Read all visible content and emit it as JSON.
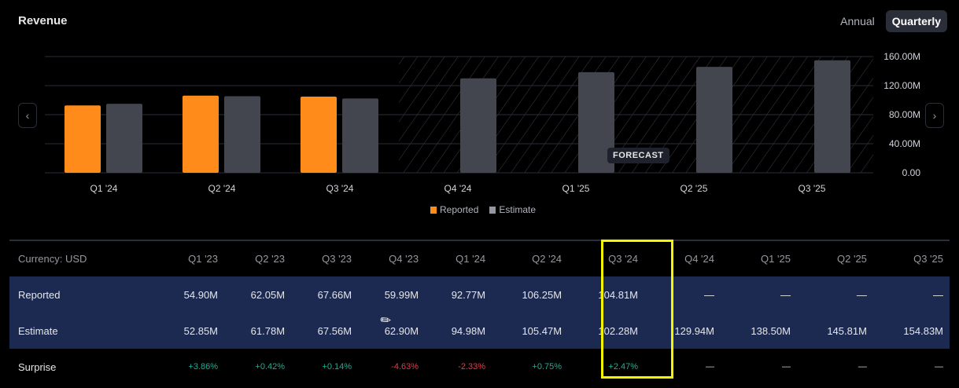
{
  "header": {
    "title": "Revenue",
    "tabs": [
      {
        "label": "Annual",
        "active": false
      },
      {
        "label": "Quarterly",
        "active": true
      }
    ]
  },
  "nav": {
    "prev": "‹",
    "next": "›"
  },
  "forecast_label": "FORECAST",
  "chart_data": {
    "type": "bar",
    "title": "Revenue",
    "categories": [
      "Q1 '24",
      "Q2 '24",
      "Q3 '24",
      "Q4 '24",
      "Q1 '25",
      "Q2 '25",
      "Q3 '25"
    ],
    "series": [
      {
        "name": "Reported",
        "color": "#ff8c1a",
        "values": [
          92.77,
          106.25,
          104.81,
          null,
          null,
          null,
          null
        ]
      },
      {
        "name": "Estimate",
        "color": "#43464f",
        "values": [
          94.98,
          105.47,
          102.28,
          129.94,
          138.5,
          145.81,
          154.83
        ]
      }
    ],
    "yticks": [
      "0.00",
      "40.00M",
      "80.00M",
      "120.00M",
      "160.00M"
    ],
    "ylim": [
      0,
      160
    ],
    "unit": "M",
    "forecast_start": "Q4 '24",
    "legend": "bottom-center"
  },
  "table": {
    "currency": "Currency: USD",
    "columns": [
      "Q1 '23",
      "Q2 '23",
      "Q3 '23",
      "Q4 '23",
      "Q1 '24",
      "Q2 '24",
      "Q3 '24",
      "Q4 '24",
      "Q1 '25",
      "Q2 '25",
      "Q3 '25"
    ],
    "rows": [
      {
        "label": "Reported",
        "values": [
          "54.90M",
          "62.05M",
          "67.66M",
          "59.99M",
          "92.77M",
          "106.25M",
          "104.81M",
          "—",
          "—",
          "—",
          "—"
        ]
      },
      {
        "label": "Estimate",
        "values": [
          "52.85M",
          "61.78M",
          "67.56M",
          "62.90M",
          "94.98M",
          "105.47M",
          "102.28M",
          "129.94M",
          "138.50M",
          "145.81M",
          "154.83M"
        ]
      },
      {
        "label": "Surprise",
        "values": [
          "+3.86%",
          "+0.42%",
          "+0.14%",
          "-4.63%",
          "-2.33%",
          "+0.75%",
          "+2.47%",
          "—",
          "—",
          "—",
          "—"
        ]
      }
    ]
  }
}
